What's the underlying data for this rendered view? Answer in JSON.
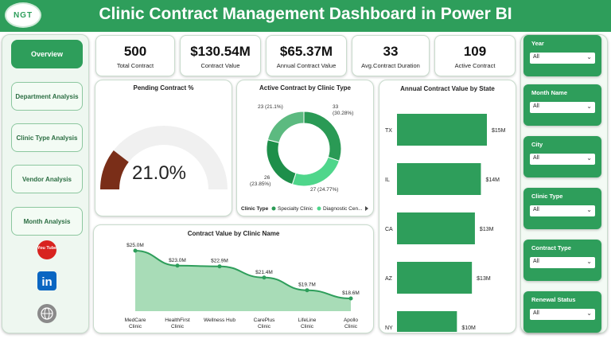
{
  "header": {
    "title": "Clinic Contract Management Dashboard in Power BI",
    "logo_text": "NGT"
  },
  "nav": [
    {
      "label": "Overview",
      "active": true
    },
    {
      "label": "Department Analysis",
      "active": false
    },
    {
      "label": "Clinic Type Analysis",
      "active": false
    },
    {
      "label": "Vendor Analysis",
      "active": false
    },
    {
      "label": "Month Analysis",
      "active": false
    }
  ],
  "social": {
    "youtube_text": "You Tube",
    "linkedin_text": "in",
    "youtube_icon": "youtube-icon",
    "linkedin_icon": "linkedin-icon",
    "web_icon": "globe-icon"
  },
  "kpis": [
    {
      "value": "500",
      "label": "Total Contract"
    },
    {
      "value": "$130.54M",
      "label": "Contract Value"
    },
    {
      "value": "$65.37M",
      "label": "Annual Contract Value"
    },
    {
      "value": "33",
      "label": "Avg.Contract Duration"
    },
    {
      "value": "109",
      "label": "Active Contract"
    }
  ],
  "filters": [
    {
      "label": "Year",
      "value": "All"
    },
    {
      "label": "Month Name",
      "value": "All"
    },
    {
      "label": "City",
      "value": "All"
    },
    {
      "label": "Clinic Type",
      "value": "All"
    },
    {
      "label": "Contract Type",
      "value": "All"
    },
    {
      "label": "Renewal Status",
      "value": "All"
    }
  ],
  "colors": {
    "brand": "#2e9e5b",
    "gauge_fill": "#7a2e18",
    "gauge_track": "#f0f0f0"
  },
  "chart_data": [
    {
      "type": "gauge",
      "title": "Pending Contract %",
      "value": 21.0,
      "value_label": "21.0%",
      "max": 100
    },
    {
      "type": "pie",
      "title": "Active Contract by Clinic Type",
      "legend_title": "Clinic Type",
      "legend": [
        "Specialty Clinic",
        "Diagnostic Cen..."
      ],
      "slices": [
        {
          "value": 33,
          "label_count": "33",
          "label_pct": "(30.28%)",
          "color": "#2a9a55"
        },
        {
          "value": 27,
          "label_count": "27",
          "label_pct": "(24.77%)",
          "color": "#4fd68b"
        },
        {
          "value": 26,
          "label_count": "26",
          "label_pct": "(23.85%)",
          "color": "#1e8f4a"
        },
        {
          "value": 23,
          "label_count": "23",
          "label_pct": "(21.1%)",
          "color": "#5cba80"
        }
      ]
    },
    {
      "type": "bar",
      "title": "Annual Contract Value by State",
      "categories": [
        "TX",
        "IL",
        "CA",
        "AZ",
        "NY"
      ],
      "values": [
        15,
        14,
        13,
        12.5,
        10
      ],
      "data_labels": [
        "$15M",
        "$14M",
        "$13M",
        "$13M",
        "$10M"
      ],
      "xlim": [
        0,
        15
      ]
    },
    {
      "type": "area",
      "title": "Contract Value by Clinic Name",
      "categories": [
        "MedCare Clinic",
        "HealthFirst Clinic",
        "Wellness Hub",
        "CarePlus Clinic",
        "LifeLine Clinic",
        "Apollo Clinic"
      ],
      "values": [
        25.0,
        23.0,
        22.9,
        21.4,
        19.7,
        18.6
      ],
      "data_labels": [
        "$25.0M",
        "$23.0M",
        "$22.9M",
        "$21.4M",
        "$19.7M",
        "$18.6M"
      ],
      "ylim": [
        0,
        26
      ]
    }
  ]
}
